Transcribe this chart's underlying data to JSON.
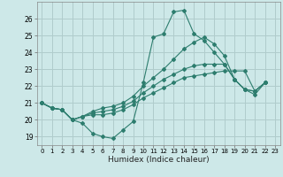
{
  "xlabel": "Humidex (Indice chaleur)",
  "xlim": [
    -0.5,
    23.5
  ],
  "ylim": [
    18.5,
    27.0
  ],
  "yticks": [
    19,
    20,
    21,
    22,
    23,
    24,
    25,
    26
  ],
  "xticks": [
    0,
    1,
    2,
    3,
    4,
    5,
    6,
    7,
    8,
    9,
    10,
    11,
    12,
    13,
    14,
    15,
    16,
    17,
    18,
    19,
    20,
    21,
    22,
    23
  ],
  "background_color": "#cde8e8",
  "grid_color": "#b0cccc",
  "line_color": "#2d7d6e",
  "lines": [
    [
      21.0,
      20.7,
      20.6,
      20.0,
      19.8,
      19.2,
      19.0,
      18.9,
      19.4,
      19.9,
      22.2,
      24.9,
      25.1,
      26.4,
      26.5,
      25.1,
      24.7,
      24.0,
      23.3,
      22.4,
      21.8,
      21.7,
      22.2
    ],
    [
      21.0,
      20.7,
      20.6,
      20.0,
      20.2,
      20.3,
      20.3,
      20.4,
      20.6,
      20.9,
      21.3,
      21.6,
      21.9,
      22.2,
      22.5,
      22.6,
      22.7,
      22.8,
      22.9,
      22.9,
      22.9,
      21.7,
      22.2
    ],
    [
      21.0,
      20.7,
      20.6,
      20.0,
      20.2,
      20.4,
      20.5,
      20.6,
      20.8,
      21.1,
      21.6,
      22.0,
      22.4,
      22.7,
      23.0,
      23.2,
      23.3,
      23.3,
      23.3,
      22.4,
      21.8,
      21.7,
      22.2
    ],
    [
      21.0,
      20.7,
      20.6,
      20.0,
      20.2,
      20.5,
      20.7,
      20.8,
      21.0,
      21.4,
      22.0,
      22.5,
      23.0,
      23.6,
      24.2,
      24.6,
      24.9,
      24.5,
      23.8,
      22.4,
      21.8,
      21.5,
      22.2
    ]
  ]
}
